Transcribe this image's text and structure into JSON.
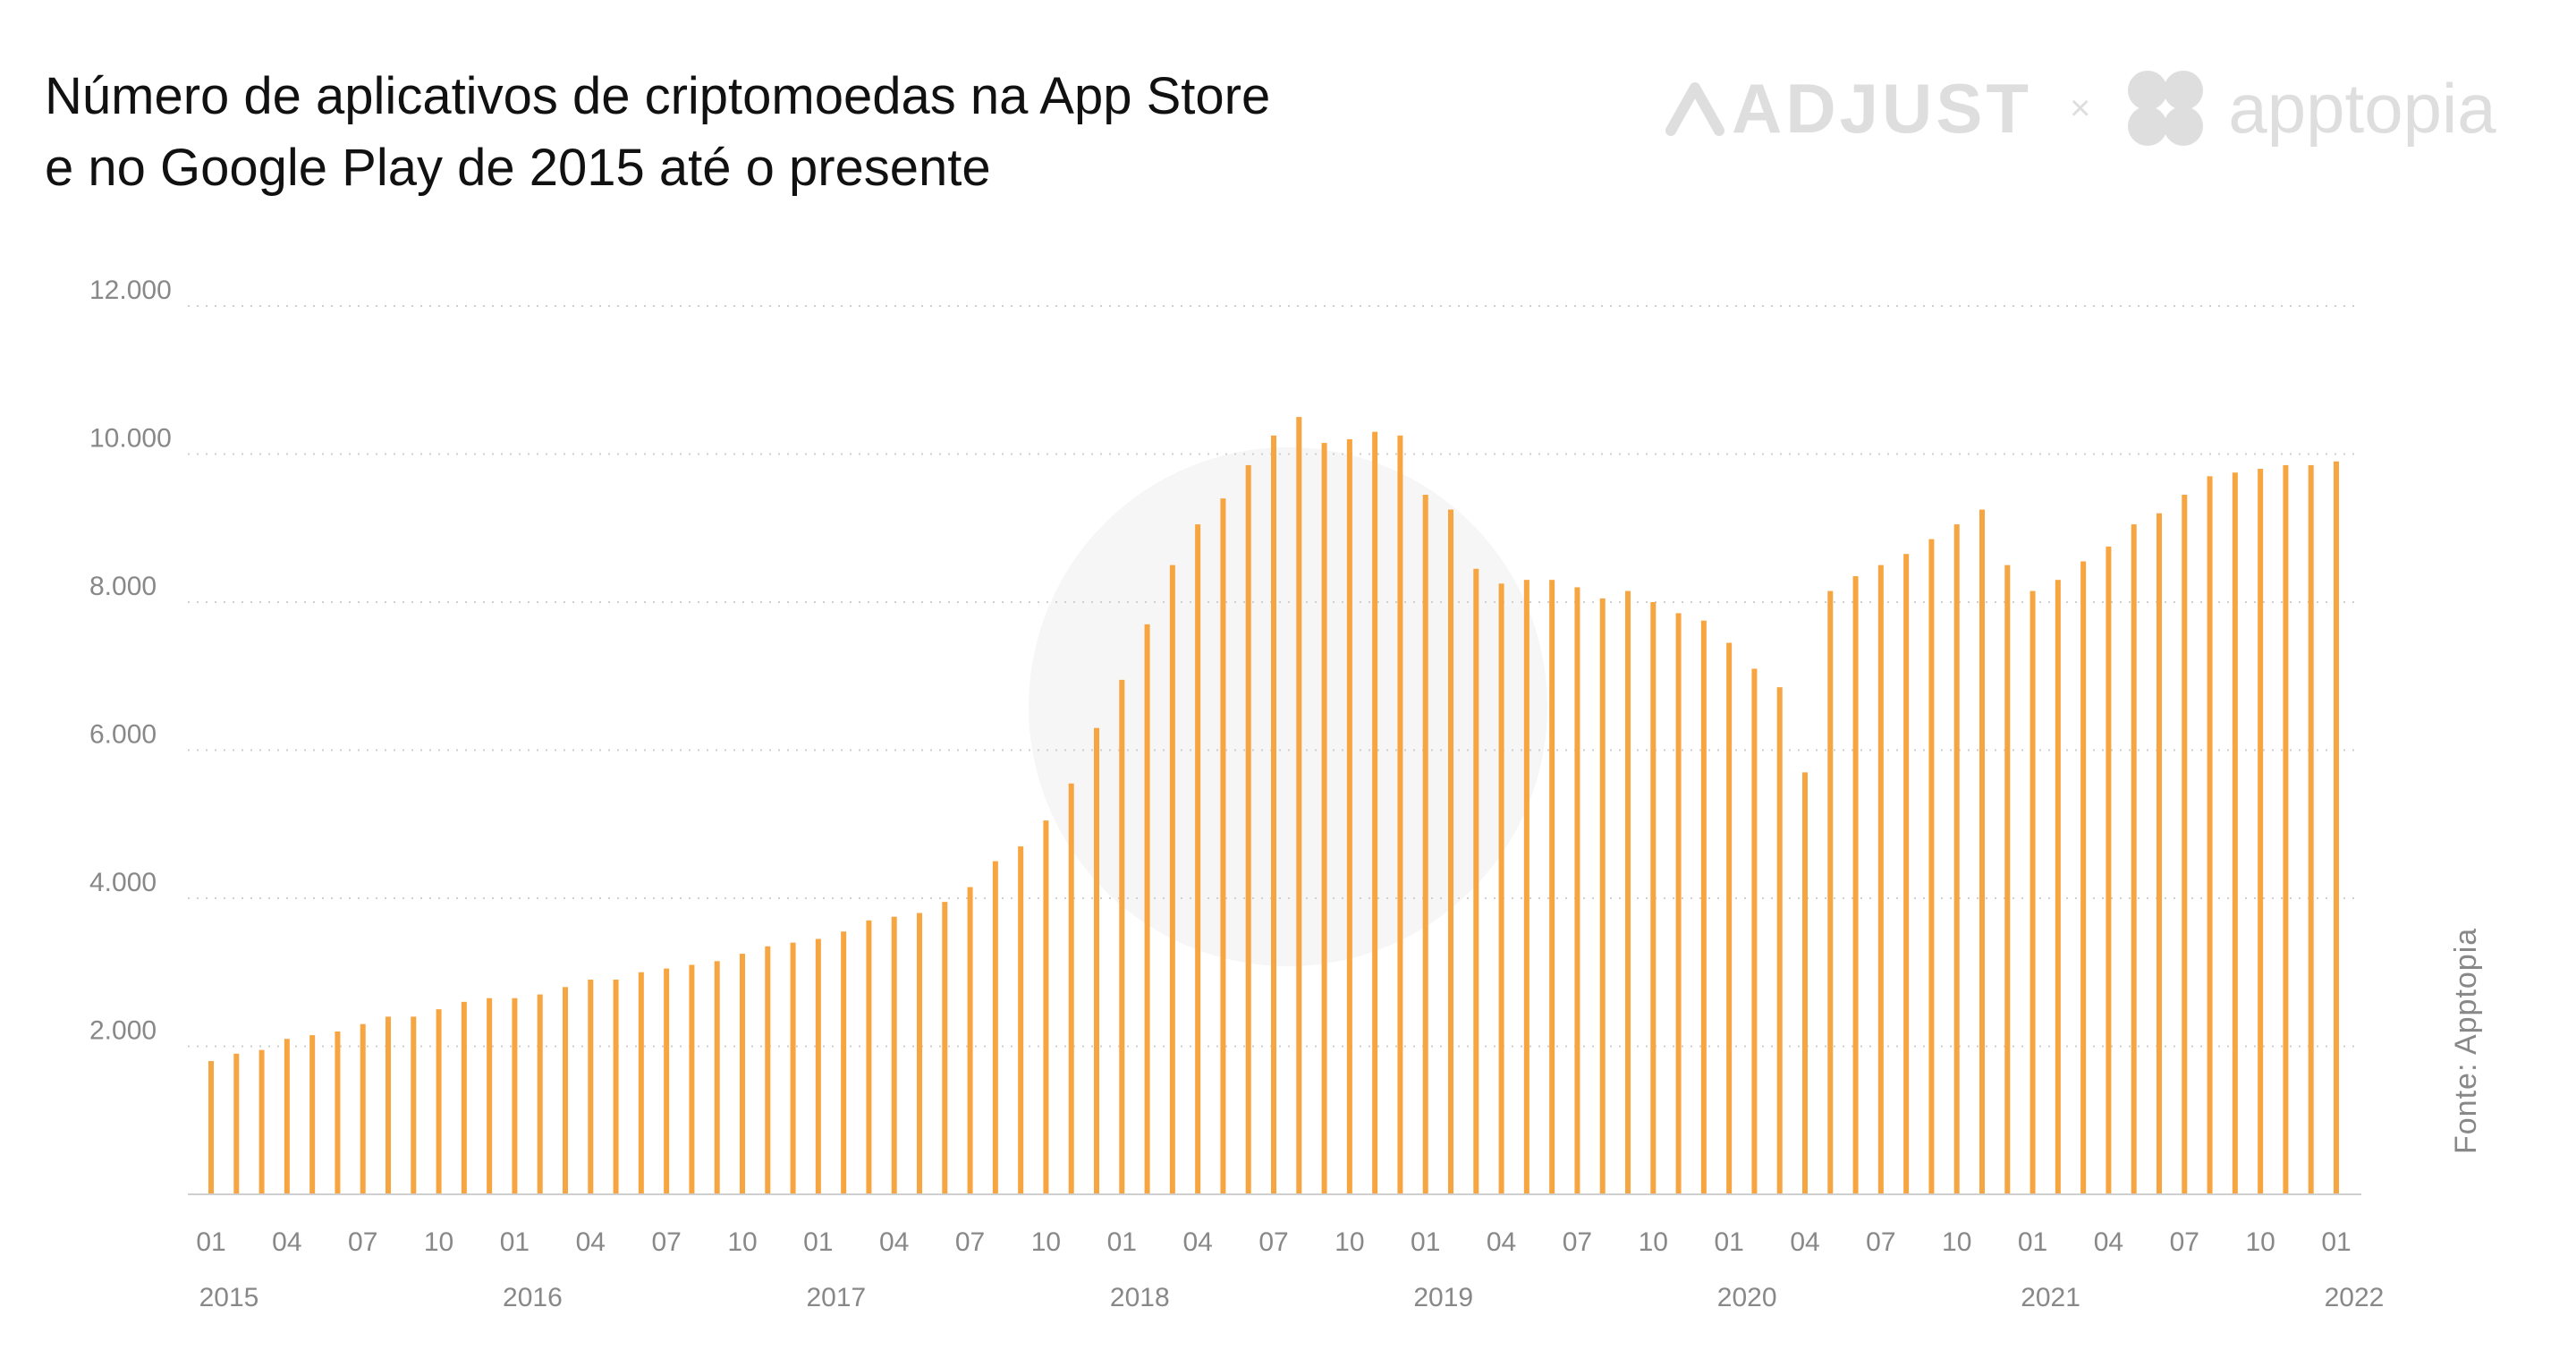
{
  "title_lines": [
    "Número de aplicativos de criptomoedas na App Store",
    "e no Google Play de 2015 até o presente"
  ],
  "logos": {
    "left": "ADJUST",
    "separator": "×",
    "right": "apptopia"
  },
  "source": "Fonte: Apptopia",
  "colors": {
    "bar": "#f7a541",
    "grid": "#cfcfcf",
    "axis_text": "#888888",
    "logo": "#dedede"
  },
  "chart_data": {
    "type": "bar",
    "title": "Número de aplicativos de criptomoedas na App Store e no Google Play de 2015 até o presente",
    "xlabel": "",
    "ylabel": "",
    "ylim": [
      0,
      12000
    ],
    "yticks": [
      2000,
      4000,
      6000,
      8000,
      10000,
      12000
    ],
    "ytick_labels": [
      "2.000",
      "4.000",
      "6.000",
      "8.000",
      "10.000",
      "12.000"
    ],
    "grid": true,
    "x_month_ticks": [
      {
        "index": 0,
        "label": "01"
      },
      {
        "index": 3,
        "label": "04"
      },
      {
        "index": 6,
        "label": "07"
      },
      {
        "index": 9,
        "label": "10"
      },
      {
        "index": 12,
        "label": "01"
      },
      {
        "index": 15,
        "label": "04"
      },
      {
        "index": 18,
        "label": "07"
      },
      {
        "index": 21,
        "label": "10"
      },
      {
        "index": 24,
        "label": "01"
      },
      {
        "index": 27,
        "label": "04"
      },
      {
        "index": 30,
        "label": "07"
      },
      {
        "index": 33,
        "label": "10"
      },
      {
        "index": 36,
        "label": "01"
      },
      {
        "index": 39,
        "label": "04"
      },
      {
        "index": 42,
        "label": "07"
      },
      {
        "index": 45,
        "label": "10"
      },
      {
        "index": 48,
        "label": "01"
      },
      {
        "index": 51,
        "label": "04"
      },
      {
        "index": 54,
        "label": "07"
      },
      {
        "index": 57,
        "label": "10"
      },
      {
        "index": 60,
        "label": "01"
      },
      {
        "index": 63,
        "label": "04"
      },
      {
        "index": 66,
        "label": "07"
      },
      {
        "index": 69,
        "label": "10"
      },
      {
        "index": 72,
        "label": "01"
      },
      {
        "index": 75,
        "label": "04"
      },
      {
        "index": 78,
        "label": "07"
      },
      {
        "index": 81,
        "label": "10"
      },
      {
        "index": 84,
        "label": "01"
      }
    ],
    "x_year_labels": [
      {
        "index": 0,
        "label": "2015"
      },
      {
        "index": 12,
        "label": "2016"
      },
      {
        "index": 24,
        "label": "2017"
      },
      {
        "index": 36,
        "label": "2018"
      },
      {
        "index": 48,
        "label": "2019"
      },
      {
        "index": 60,
        "label": "2020"
      },
      {
        "index": 72,
        "label": "2021"
      },
      {
        "index": 84,
        "label": "2022"
      }
    ],
    "categories": [
      "2015-01",
      "2015-02",
      "2015-03",
      "2015-04",
      "2015-05",
      "2015-06",
      "2015-07",
      "2015-08",
      "2015-09",
      "2015-10",
      "2015-11",
      "2015-12",
      "2016-01",
      "2016-02",
      "2016-03",
      "2016-04",
      "2016-05",
      "2016-06",
      "2016-07",
      "2016-08",
      "2016-09",
      "2016-10",
      "2016-11",
      "2016-12",
      "2017-01",
      "2017-02",
      "2017-03",
      "2017-04",
      "2017-05",
      "2017-06",
      "2017-07",
      "2017-08",
      "2017-09",
      "2017-10",
      "2017-11",
      "2017-12",
      "2018-01",
      "2018-02",
      "2018-03",
      "2018-04",
      "2018-05",
      "2018-06",
      "2018-07",
      "2018-08",
      "2018-09",
      "2018-10",
      "2018-11",
      "2018-12",
      "2019-01",
      "2019-02",
      "2019-03",
      "2019-04",
      "2019-05",
      "2019-06",
      "2019-07",
      "2019-08",
      "2019-09",
      "2019-10",
      "2019-11",
      "2019-12",
      "2020-01",
      "2020-02",
      "2020-03",
      "2020-04",
      "2020-05",
      "2020-06",
      "2020-07",
      "2020-08",
      "2020-09",
      "2020-10",
      "2020-11",
      "2020-12",
      "2021-01",
      "2021-02",
      "2021-03",
      "2021-04",
      "2021-05",
      "2021-06",
      "2021-07",
      "2021-08",
      "2021-09",
      "2021-10",
      "2021-11",
      "2021-12",
      "2022-01"
    ],
    "values": [
      1800,
      1900,
      1950,
      2100,
      2150,
      2200,
      2300,
      2400,
      2400,
      2500,
      2600,
      2650,
      2650,
      2700,
      2800,
      2900,
      2900,
      3000,
      3050,
      3100,
      3150,
      3250,
      3350,
      3400,
      3450,
      3550,
      3700,
      3750,
      3800,
      3950,
      4150,
      4500,
      4700,
      5050,
      5550,
      6300,
      6950,
      7700,
      8500,
      9050,
      9400,
      9850,
      10250,
      10500,
      10150,
      10200,
      10300,
      10250,
      9450,
      9250,
      8450,
      8250,
      8300,
      8300,
      8200,
      8050,
      8150,
      8000,
      7850,
      7750,
      7450,
      7100,
      6850,
      5700,
      8150,
      8350,
      8500,
      8650,
      8850,
      9050,
      9250,
      8500,
      8150,
      8300,
      8550,
      8750,
      9050,
      9200,
      9450,
      9700,
      9750,
      9800,
      9850,
      9850,
      9900
    ]
  }
}
